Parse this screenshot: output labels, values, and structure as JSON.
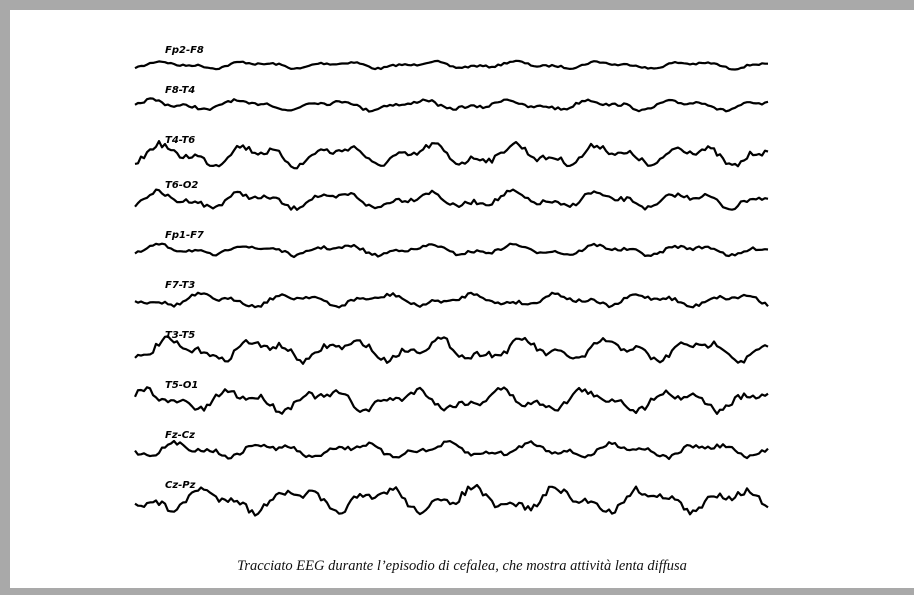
{
  "figure": {
    "channels": [
      "Fp2-F8",
      "F8-T4",
      "T4-T6",
      "T6-O2",
      "Fp1-F7",
      "F7-T3",
      "T3-T5",
      "T5-O1",
      "Fz-Cz",
      "Cz-Pz"
    ],
    "caption": "Tracciato EEG durante l’episodio di cefalea, che mostra attività lenta diffusa"
  }
}
